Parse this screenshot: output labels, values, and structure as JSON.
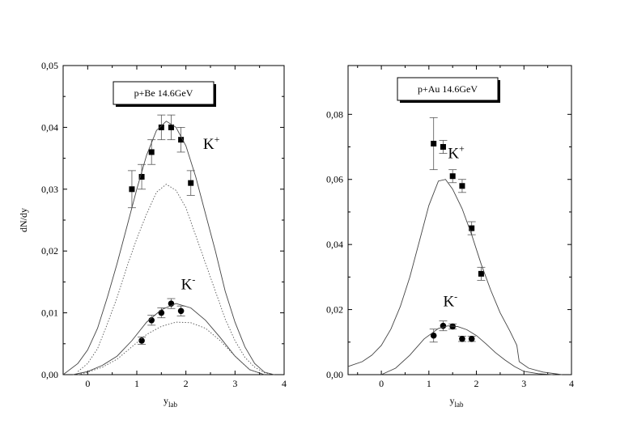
{
  "chart_data": [
    {
      "type": "scatter",
      "title": "",
      "box_label": "p+Be 14.6GeV",
      "xlabel": "y",
      "xlabel_sub": "lab",
      "ylabel": "dN/dy",
      "xlim": [
        -0.5,
        4
      ],
      "ylim": [
        0,
        0.05
      ],
      "xticks": [
        0,
        1,
        2,
        3,
        4
      ],
      "yticks": [
        0,
        0.01,
        0.02,
        0.03,
        0.04,
        0.05
      ],
      "ytick_labels": [
        "0,00",
        "0,01",
        "0,02",
        "0,03",
        "0,04",
        "0,05"
      ],
      "xtick_labels": [
        "0",
        "1",
        "2",
        "3",
        "4"
      ],
      "annotations": [
        {
          "base": "K",
          "sup": "+",
          "x": 2.35,
          "y": 0.0365
        },
        {
          "base": "K",
          "sup": "-",
          "x": 1.9,
          "y": 0.0138
        }
      ],
      "series": [
        {
          "marker": "square",
          "points": [
            {
              "x": 0.9,
              "y": 0.03,
              "err": 0.003
            },
            {
              "x": 1.1,
              "y": 0.032,
              "err": 0.002
            },
            {
              "x": 1.3,
              "y": 0.036,
              "err": 0.002
            },
            {
              "x": 1.5,
              "y": 0.04,
              "err": 0.002
            },
            {
              "x": 1.7,
              "y": 0.04,
              "err": 0.002
            },
            {
              "x": 1.9,
              "y": 0.038,
              "err": 0.002
            },
            {
              "x": 2.1,
              "y": 0.031,
              "err": 0.002
            }
          ]
        },
        {
          "marker": "circle",
          "points": [
            {
              "x": 1.1,
              "y": 0.0055,
              "err": 0.0006
            },
            {
              "x": 1.3,
              "y": 0.0088,
              "err": 0.0008
            },
            {
              "x": 1.5,
              "y": 0.01,
              "err": 0.0008
            },
            {
              "x": 1.7,
              "y": 0.0115,
              "err": 0.0008
            },
            {
              "x": 1.9,
              "y": 0.0103,
              "err": 0.0008
            }
          ]
        },
        {
          "style": "solid",
          "line": [
            [
              -0.5,
              0.0
            ],
            [
              -0.2,
              0.0018
            ],
            [
              0,
              0.004
            ],
            [
              0.2,
              0.0075
            ],
            [
              0.4,
              0.0125
            ],
            [
              0.6,
              0.018
            ],
            [
              0.8,
              0.024
            ],
            [
              1.0,
              0.03
            ],
            [
              1.2,
              0.0355
            ],
            [
              1.4,
              0.0395
            ],
            [
              1.6,
              0.041
            ],
            [
              1.8,
              0.04
            ],
            [
              2.0,
              0.037
            ],
            [
              2.2,
              0.032
            ],
            [
              2.4,
              0.026
            ],
            [
              2.6,
              0.02
            ],
            [
              2.8,
              0.0135
            ],
            [
              3.0,
              0.0085
            ],
            [
              3.2,
              0.0045
            ],
            [
              3.4,
              0.0018
            ],
            [
              3.6,
              0.0004
            ],
            [
              3.8,
              0.0
            ]
          ]
        },
        {
          "style": "dotted",
          "line": [
            [
              -0.2,
              0.0005
            ],
            [
              0,
              0.0018
            ],
            [
              0.2,
              0.0042
            ],
            [
              0.4,
              0.0082
            ],
            [
              0.6,
              0.0125
            ],
            [
              0.8,
              0.0175
            ],
            [
              1.0,
              0.022
            ],
            [
              1.2,
              0.026
            ],
            [
              1.4,
              0.0295
            ],
            [
              1.6,
              0.0308
            ],
            [
              1.8,
              0.0298
            ],
            [
              2.0,
              0.027
            ],
            [
              2.2,
              0.0225
            ],
            [
              2.4,
              0.018
            ],
            [
              2.6,
              0.0135
            ],
            [
              2.8,
              0.009
            ],
            [
              3.0,
              0.0055
            ],
            [
              3.2,
              0.0028
            ],
            [
              3.4,
              0.0012
            ],
            [
              3.6,
              0.0003
            ],
            [
              3.8,
              0.0
            ]
          ]
        },
        {
          "style": "solid",
          "line": [
            [
              -0.3,
              0.0
            ],
            [
              0,
              0.0005
            ],
            [
              0.3,
              0.0015
            ],
            [
              0.6,
              0.003
            ],
            [
              0.9,
              0.0055
            ],
            [
              1.2,
              0.0085
            ],
            [
              1.5,
              0.0105
            ],
            [
              1.8,
              0.0115
            ],
            [
              2.1,
              0.0108
            ],
            [
              2.4,
              0.0088
            ],
            [
              2.7,
              0.006
            ],
            [
              3.0,
              0.003
            ],
            [
              3.3,
              0.0008
            ],
            [
              3.6,
              0.0
            ]
          ]
        },
        {
          "style": "dotted",
          "line": [
            [
              -0.2,
              0.0
            ],
            [
              0,
              0.0004
            ],
            [
              0.3,
              0.0012
            ],
            [
              0.6,
              0.0025
            ],
            [
              0.9,
              0.0045
            ],
            [
              1.2,
              0.0065
            ],
            [
              1.5,
              0.0078
            ],
            [
              1.8,
              0.0085
            ],
            [
              2.1,
              0.0084
            ],
            [
              2.4,
              0.0075
            ],
            [
              2.7,
              0.0055
            ],
            [
              3.0,
              0.003
            ],
            [
              3.3,
              0.0008
            ],
            [
              3.6,
              0.0
            ]
          ]
        }
      ]
    },
    {
      "type": "scatter",
      "title": "",
      "box_label": "p+Au 14.6GeV",
      "xlabel": "y",
      "xlabel_sub": "lab",
      "ylabel": "",
      "xlim": [
        -0.7,
        4
      ],
      "ylim": [
        0,
        0.095
      ],
      "xticks": [
        0,
        1,
        2,
        3,
        4
      ],
      "yticks": [
        0,
        0.02,
        0.04,
        0.06,
        0.08
      ],
      "ytick_labels": [
        "0,00",
        "0,02",
        "0,04",
        "0,06",
        "0,08"
      ],
      "xtick_labels": [
        "0",
        "1",
        "2",
        "3",
        "4"
      ],
      "annotations": [
        {
          "base": "K",
          "sup": "+",
          "x": 1.4,
          "y": 0.0665
        },
        {
          "base": "K",
          "sup": "-",
          "x": 1.3,
          "y": 0.021
        }
      ],
      "series": [
        {
          "marker": "square",
          "points": [
            {
              "x": 1.1,
              "y": 0.071,
              "err": 0.008
            },
            {
              "x": 1.3,
              "y": 0.07,
              "err": 0.002
            },
            {
              "x": 1.5,
              "y": 0.061,
              "err": 0.002
            },
            {
              "x": 1.7,
              "y": 0.058,
              "err": 0.002
            },
            {
              "x": 1.9,
              "y": 0.045,
              "err": 0.002
            },
            {
              "x": 2.1,
              "y": 0.031,
              "err": 0.002
            }
          ]
        },
        {
          "marker": "circle",
          "points": [
            {
              "x": 1.1,
              "y": 0.012,
              "err": 0.002
            },
            {
              "x": 1.3,
              "y": 0.015,
              "err": 0.0015
            },
            {
              "x": 1.5,
              "y": 0.0148,
              "err": 0.0008
            },
            {
              "x": 1.7,
              "y": 0.011,
              "err": 0.0008
            },
            {
              "x": 1.9,
              "y": 0.011,
              "err": 0.0008
            }
          ]
        },
        {
          "style": "solid",
          "line": [
            [
              -0.7,
              0.0025
            ],
            [
              -0.4,
              0.004
            ],
            [
              -0.2,
              0.006
            ],
            [
              0,
              0.009
            ],
            [
              0.2,
              0.014
            ],
            [
              0.4,
              0.021
            ],
            [
              0.6,
              0.03
            ],
            [
              0.8,
              0.041
            ],
            [
              1.0,
              0.052
            ],
            [
              1.2,
              0.0595
            ],
            [
              1.35,
              0.06
            ],
            [
              1.5,
              0.057
            ],
            [
              1.7,
              0.051
            ],
            [
              1.9,
              0.043
            ],
            [
              2.1,
              0.034
            ],
            [
              2.3,
              0.026
            ],
            [
              2.5,
              0.019
            ],
            [
              2.7,
              0.0135
            ],
            [
              2.85,
              0.009
            ],
            [
              2.9,
              0.004
            ],
            [
              3.1,
              0.002
            ],
            [
              3.4,
              0.0008
            ],
            [
              3.8,
              0.0
            ]
          ]
        },
        {
          "style": "solid",
          "line": [
            [
              0,
              0.0
            ],
            [
              0.3,
              0.002
            ],
            [
              0.6,
              0.006
            ],
            [
              0.9,
              0.011
            ],
            [
              1.2,
              0.0142
            ],
            [
              1.4,
              0.015
            ],
            [
              1.6,
              0.0148
            ],
            [
              1.8,
              0.0138
            ],
            [
              2.0,
              0.012
            ],
            [
              2.2,
              0.0095
            ],
            [
              2.4,
              0.0068
            ],
            [
              2.6,
              0.0045
            ],
            [
              2.8,
              0.0025
            ],
            [
              3.0,
              0.001
            ],
            [
              3.3,
              0.0003
            ],
            [
              3.6,
              0.0
            ]
          ]
        }
      ]
    }
  ]
}
